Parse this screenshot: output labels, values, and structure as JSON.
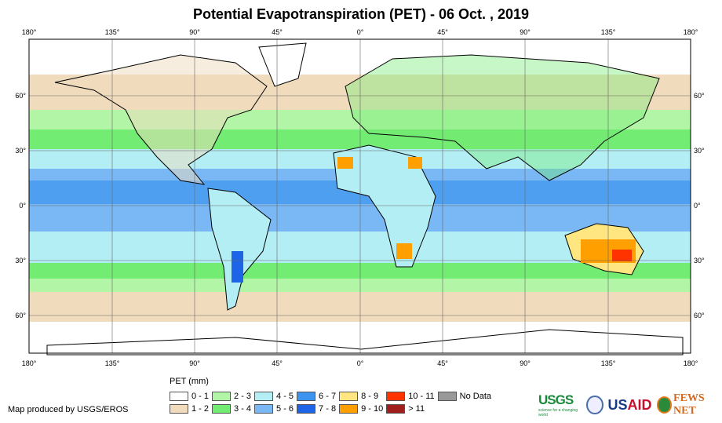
{
  "title": "Potential Evapotranspiration (PET) - 06 Oct. , 2019",
  "lon_labels": [
    "180°",
    "135°",
    "90°",
    "45°",
    "0°",
    "45°",
    "90°",
    "135°",
    "180°"
  ],
  "lat_labels": [
    "60°",
    "30°",
    "0°",
    "30°",
    "60°"
  ],
  "legend": {
    "title": "PET (mm)",
    "items": [
      {
        "label": "0 - 1",
        "color": "#ffffff"
      },
      {
        "label": "2 - 3",
        "color": "#b3f5a6"
      },
      {
        "label": "4 - 5",
        "color": "#b3eef5"
      },
      {
        "label": "6 - 7",
        "color": "#3d94ee"
      },
      {
        "label": "8 - 9",
        "color": "#ffe680"
      },
      {
        "label": "10 - 11",
        "color": "#ff3300"
      },
      {
        "label": "No Data",
        "color": "#999999"
      },
      {
        "label": "1 - 2",
        "color": "#f0dcbd"
      },
      {
        "label": "3 - 4",
        "color": "#73ec73"
      },
      {
        "label": "5 - 6",
        "color": "#7ab8f5"
      },
      {
        "label": "7 - 8",
        "color": "#1e64e6"
      },
      {
        "label": "9 - 10",
        "color": "#ffa000"
      },
      {
        "label": "> 11",
        "color": "#a01e1e"
      }
    ]
  },
  "credit": "Map produced by USGS/EROS",
  "logos": {
    "usgs": "USGS",
    "usgs_tagline": "science for a changing world",
    "usaid_a": "US",
    "usaid_b": "AID",
    "fews": "FEWS NET"
  }
}
